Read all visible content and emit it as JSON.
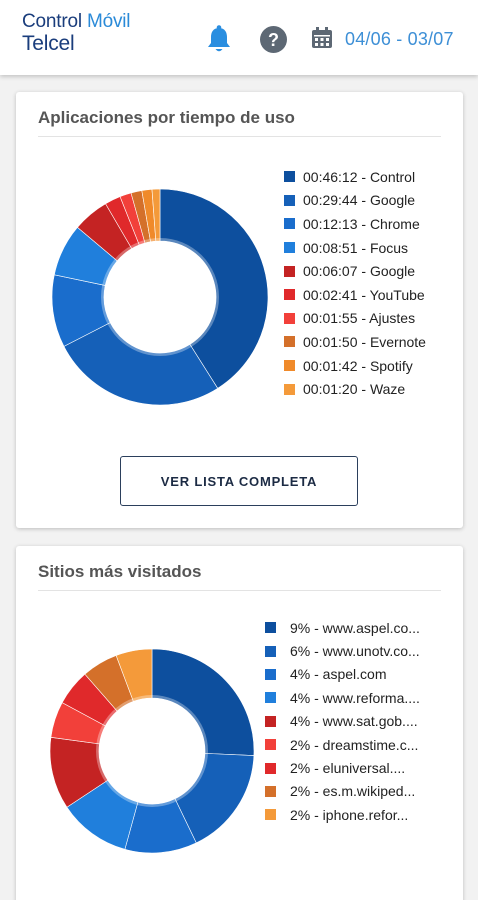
{
  "header": {
    "brand_line1": "Control",
    "brand_accent": "Móvil",
    "brand_line2": "Telcel",
    "icons": [
      "bell-icon",
      "help-icon",
      "calendar-icon"
    ],
    "date_range": "04/06 - 03/07",
    "brand_color": "#1a3d7c",
    "accent_color": "#3d8fd6"
  },
  "apps_card": {
    "title": "Aplicaciones por tiempo de uso",
    "button_label": "VER LISTA COMPLETA",
    "legend": [
      {
        "label": "00:46:12 - Control",
        "color": "#0d4f9e"
      },
      {
        "label": "00:29:44 - Google",
        "color": "#1560b8"
      },
      {
        "label": "00:12:13 - Chrome",
        "color": "#1a6dcc"
      },
      {
        "label": "00:08:51 - Focus",
        "color": "#207fdc"
      },
      {
        "label": "00:06:07 - Google",
        "color": "#c42323"
      },
      {
        "label": "00:02:41 - YouTube",
        "color": "#e0292b"
      },
      {
        "label": "00:01:55 - Ajustes",
        "color": "#f2403a"
      },
      {
        "label": "00:01:50 - Evernote",
        "color": "#d4702a"
      },
      {
        "label": "00:01:42 - Spotify",
        "color": "#f08a2a"
      },
      {
        "label": "00:01:20 - Waze",
        "color": "#f49a3a"
      }
    ]
  },
  "chart_data": [
    {
      "type": "pie",
      "categories": [
        "Control",
        "Google",
        "Chrome",
        "Focus",
        "Google",
        "YouTube",
        "Ajustes",
        "Evernote",
        "Spotify",
        "Waze"
      ],
      "values": [
        2772,
        1784,
        733,
        531,
        367,
        161,
        115,
        110,
        102,
        80
      ]
    },
    {
      "type": "pie",
      "categories": [
        "www.aspel.co...",
        "www.unotv.co...",
        "aspel.com",
        "www.reforma....",
        "www.sat.gob....",
        "dreamstime.c...",
        "eluniversal....",
        "es.m.wikiped...",
        "iphone.refor..."
      ],
      "values": [
        9,
        6,
        4,
        4,
        4,
        2,
        2,
        2,
        2
      ]
    }
  ],
  "sites_card": {
    "title": "Sitios más visitados",
    "legend": [
      {
        "label": "9% - www.aspel.co...",
        "color": "#0d4f9e"
      },
      {
        "label": "6% - www.unotv.co...",
        "color": "#1560b8"
      },
      {
        "label": "4% - aspel.com",
        "color": "#1a6dcc"
      },
      {
        "label": "4% - www.reforma....",
        "color": "#207fdc"
      },
      {
        "label": "4% - www.sat.gob....",
        "color": "#c42323"
      },
      {
        "label": "2% - dreamstime.c...",
        "color": "#f2403a"
      },
      {
        "label": "2% - eluniversal....",
        "color": "#e0292b"
      },
      {
        "label": "2% - es.m.wikiped...",
        "color": "#d4702a"
      },
      {
        "label": "2% - iphone.refor...",
        "color": "#f49a3a"
      }
    ]
  }
}
